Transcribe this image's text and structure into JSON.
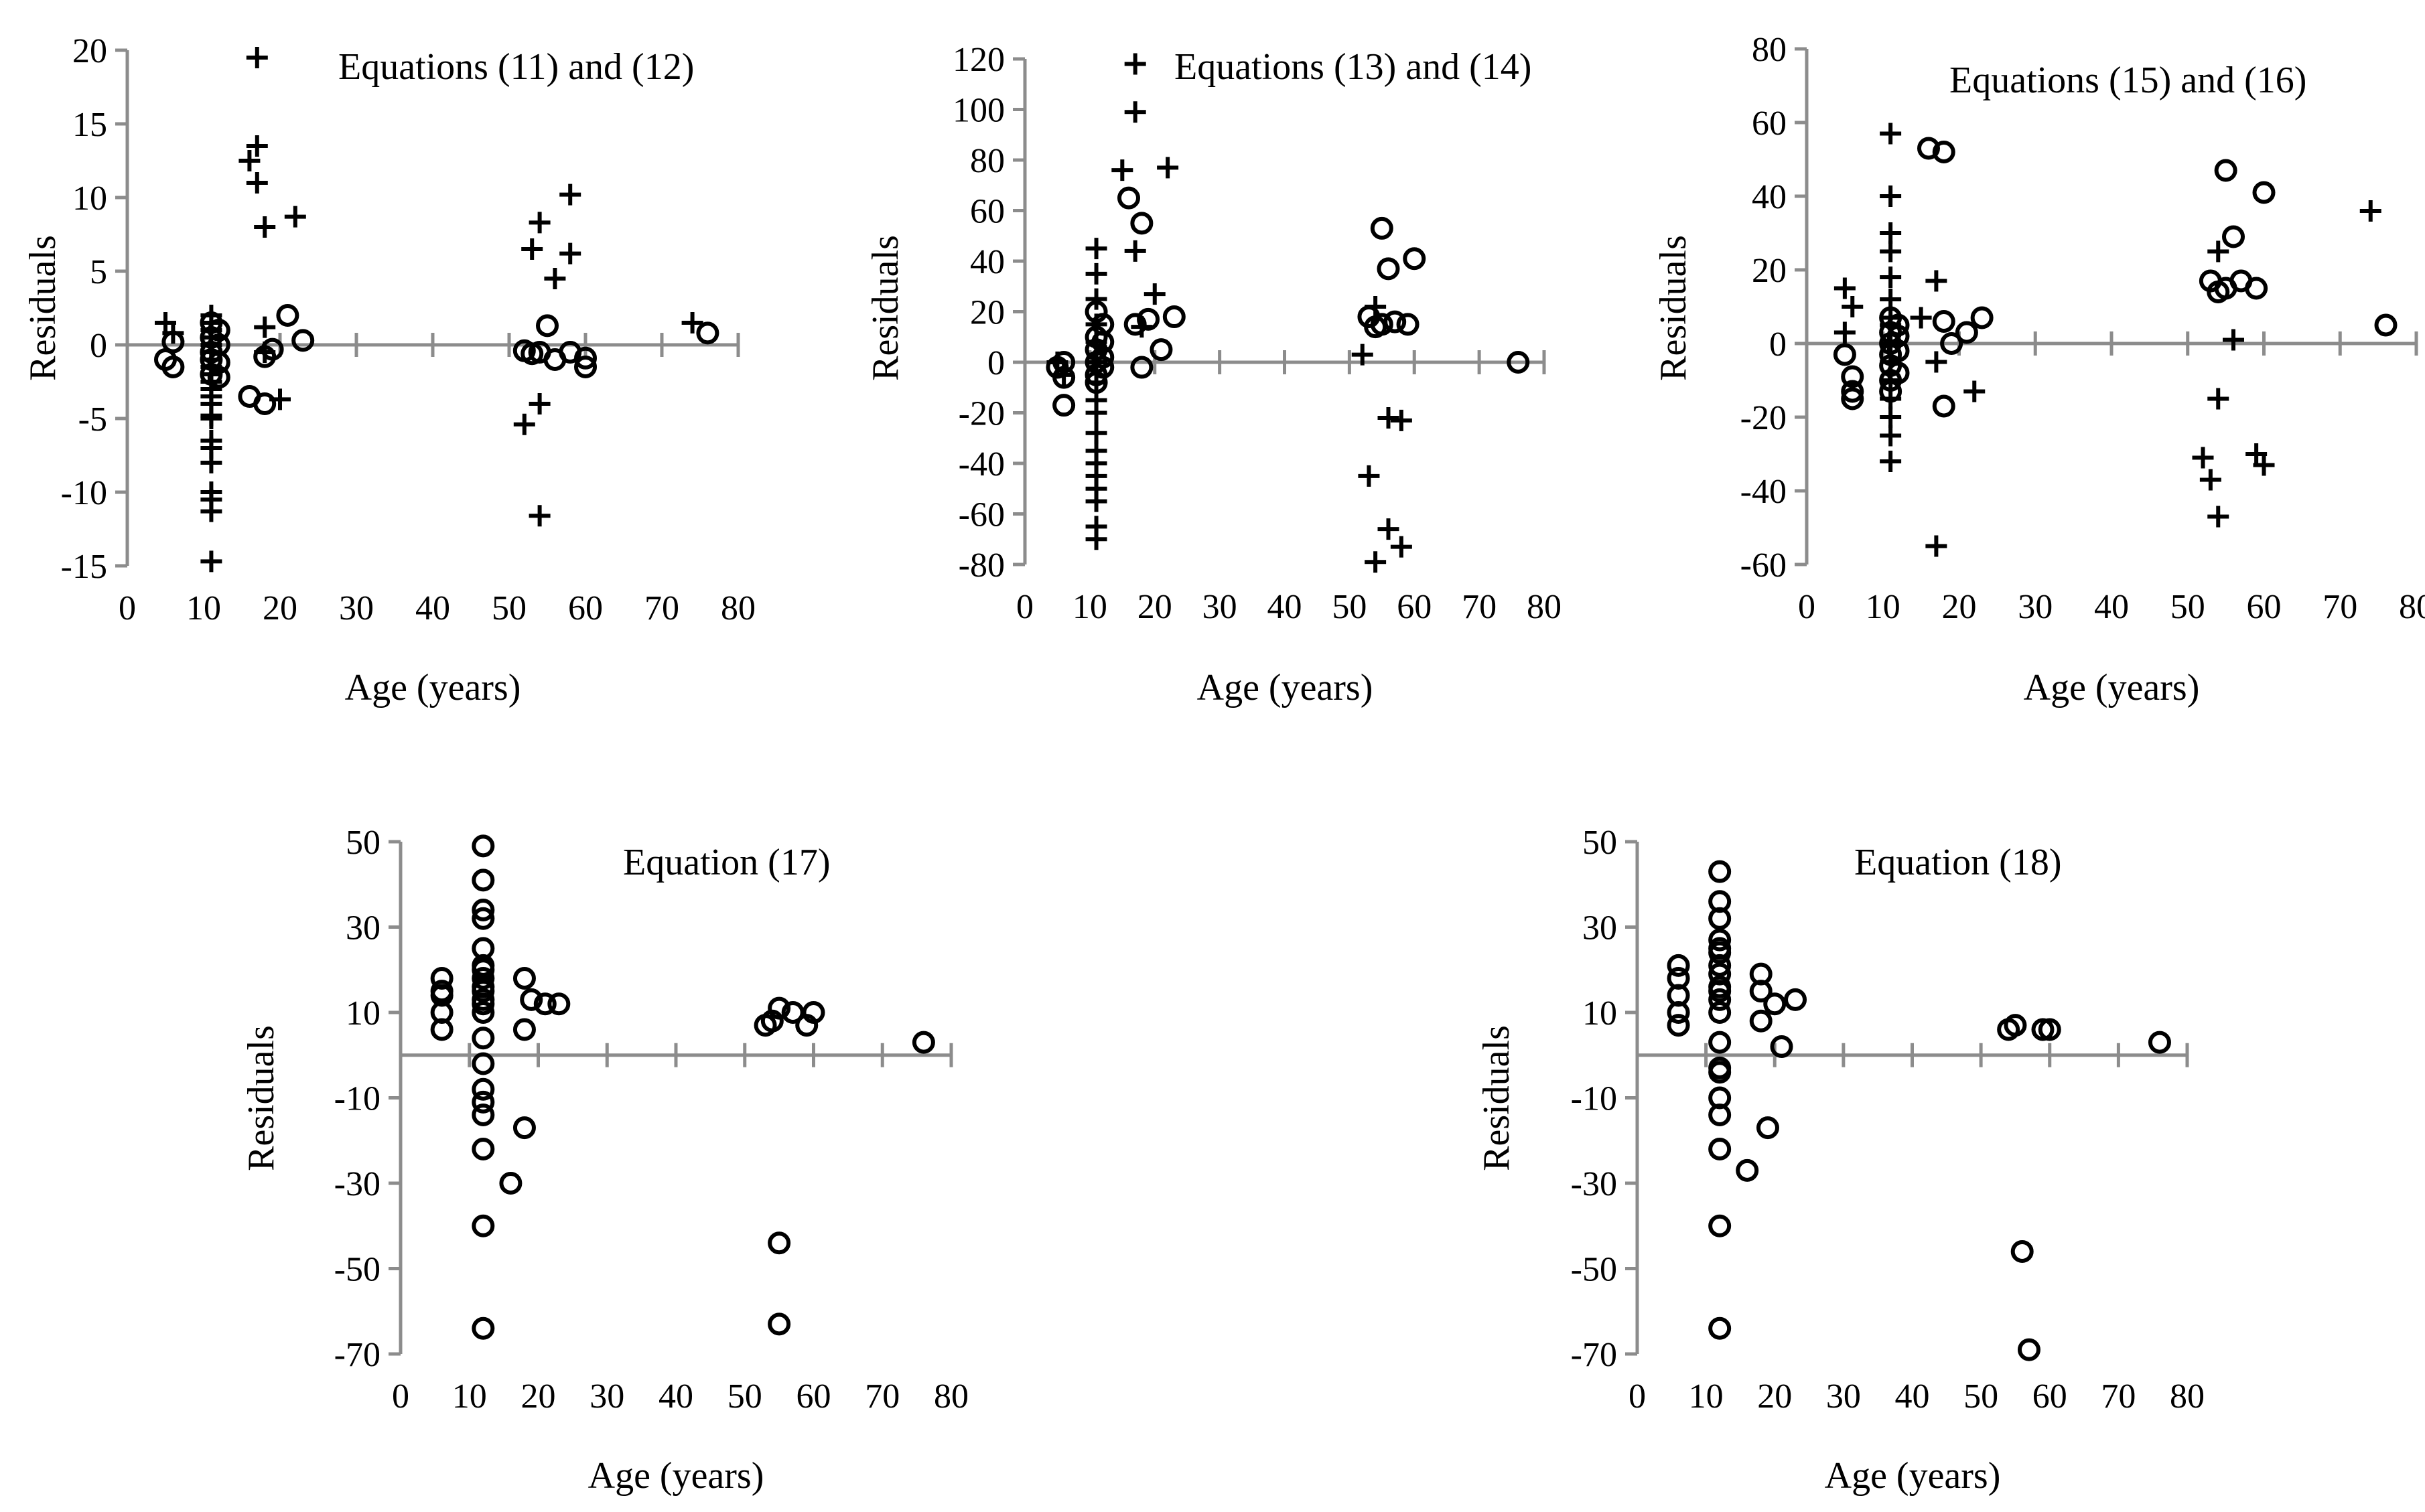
{
  "colors": {
    "axis": "#8c8c8c",
    "marker": "#000000",
    "background": "#ffffff"
  },
  "chart_data": [
    {
      "type": "scatter",
      "title": "Equations (11) and (12)",
      "xlabel": "Age (years)",
      "ylabel": "Residuals",
      "xlim": [
        0,
        80
      ],
      "ylim": [
        -15,
        20
      ],
      "xticks": [
        0,
        10,
        20,
        30,
        40,
        50,
        60,
        70,
        80
      ],
      "yticks": [
        -15,
        -10,
        -5,
        0,
        5,
        10,
        15,
        20
      ],
      "xtick_labels": [
        "0",
        "10",
        "20",
        "30",
        "40",
        "50",
        "60",
        "70",
        "80"
      ],
      "ytick_labels": [
        "-15",
        "-10",
        "-5",
        "0",
        "5",
        "10",
        "15",
        "20"
      ],
      "series": [
        {
          "name": "Equation (11)",
          "marker": "plus",
          "x": [
            5,
            6,
            11,
            11,
            11,
            11,
            11,
            11,
            11,
            11,
            11,
            11,
            11,
            11,
            11,
            11,
            11,
            11,
            11,
            11,
            11,
            11,
            11,
            11,
            11,
            16,
            17,
            17,
            17,
            18,
            18,
            18,
            20,
            22,
            52,
            53,
            54,
            54,
            54,
            56,
            58,
            58,
            74
          ],
          "y": [
            1.5,
            0.8,
            2,
            1.5,
            1,
            0.5,
            0,
            -0.5,
            -1,
            -1.5,
            -2,
            -3,
            -4,
            -5,
            -6.5,
            -7,
            -8,
            -10,
            -10.5,
            -11.3,
            -14.7,
            -1,
            -2.5,
            -3.5,
            -4.8,
            12.5,
            13.5,
            19.5,
            11,
            8,
            1.2,
            -0.5,
            -3.7,
            8.7,
            -5.4,
            6.5,
            8.3,
            -4,
            -11.6,
            4.5,
            10.2,
            6.2,
            1.5
          ]
        },
        {
          "name": "Equation (12)",
          "marker": "circle",
          "x": [
            5,
            6,
            6,
            11,
            11,
            11,
            11,
            11,
            12,
            12,
            12,
            12,
            16,
            18,
            18,
            19,
            21,
            23,
            52,
            53,
            54,
            55,
            56,
            58,
            60,
            60,
            76
          ],
          "y": [
            -1,
            -1.5,
            0.2,
            1.5,
            0.5,
            -0.5,
            -1,
            -2,
            1,
            0,
            -1.2,
            -2.2,
            -3.5,
            -4,
            -0.8,
            -0.3,
            2,
            0.3,
            -0.4,
            -0.6,
            -0.5,
            1.3,
            -1,
            -0.5,
            -0.9,
            -1.5,
            0.8
          ]
        }
      ]
    },
    {
      "type": "scatter",
      "title": "Equations (13) and (14)",
      "xlabel": "Age (years)",
      "ylabel": "Residuals",
      "xlim": [
        0,
        80
      ],
      "ylim": [
        -80,
        120
      ],
      "xticks": [
        0,
        10,
        20,
        30,
        40,
        50,
        60,
        70,
        80
      ],
      "yticks": [
        -80,
        -60,
        -40,
        -20,
        0,
        20,
        40,
        60,
        80,
        100,
        120
      ],
      "xtick_labels": [
        "0",
        "10",
        "20",
        "30",
        "40",
        "50",
        "60",
        "70",
        "80"
      ],
      "ytick_labels": [
        "-80",
        "-60",
        "-40",
        "-20",
        "0",
        "20",
        "40",
        "60",
        "80",
        "100",
        "120"
      ],
      "series": [
        {
          "name": "Equation (13)",
          "marker": "plus",
          "x": [
            5,
            6,
            11,
            11,
            11,
            11,
            11,
            11,
            11,
            11,
            11,
            11,
            11,
            11,
            11,
            11,
            11,
            11,
            11,
            15,
            17,
            17,
            17,
            18,
            20,
            22,
            52,
            53,
            54,
            54,
            56,
            56,
            58,
            58
          ],
          "y": [
            0,
            -5,
            45,
            35,
            25,
            15,
            8,
            0,
            -8,
            -15,
            -20,
            -28,
            -35,
            -40,
            -45,
            -50,
            -55,
            -65,
            -70,
            76,
            99,
            118,
            44,
            14,
            27,
            77,
            3,
            -45,
            -79,
            22,
            -66,
            -22,
            -73,
            -23
          ]
        },
        {
          "name": "Equation (14)",
          "marker": "circle",
          "x": [
            5,
            6,
            6,
            6,
            11,
            11,
            11,
            11,
            11,
            11,
            12,
            12,
            12,
            12,
            16,
            17,
            18,
            18,
            19,
            21,
            23,
            53,
            54,
            55,
            55,
            56,
            57,
            59,
            60,
            76
          ],
          "y": [
            -2,
            -17,
            0,
            -6,
            20,
            10,
            5,
            0,
            -5,
            -8,
            15,
            2,
            -2,
            8,
            65,
            15,
            55,
            -2,
            17,
            5,
            18,
            18,
            14,
            15,
            53,
            37,
            16,
            15,
            41,
            0
          ]
        }
      ]
    },
    {
      "type": "scatter",
      "title": "Equations (15) and (16)",
      "xlabel": "Age (years)",
      "ylabel": "Residuals",
      "xlim": [
        0,
        80
      ],
      "ylim": [
        -60,
        80
      ],
      "xticks": [
        0,
        10,
        20,
        30,
        40,
        50,
        60,
        70,
        80
      ],
      "yticks": [
        -60,
        -40,
        -20,
        0,
        20,
        40,
        60,
        80
      ],
      "xtick_labels": [
        "0",
        "10",
        "20",
        "30",
        "40",
        "50",
        "60",
        "70",
        "80"
      ],
      "ytick_labels": [
        "-60",
        "-40",
        "-20",
        "0",
        "20",
        "40",
        "60",
        "80"
      ],
      "series": [
        {
          "name": "Equation (15)",
          "marker": "plus",
          "x": [
            5,
            5,
            6,
            11,
            11,
            11,
            11,
            11,
            11,
            11,
            11,
            11,
            11,
            11,
            11,
            11,
            11,
            11,
            15,
            17,
            17,
            17,
            22,
            52,
            53,
            54,
            54,
            54,
            56,
            59,
            60,
            74
          ],
          "y": [
            15,
            3,
            10,
            57,
            40,
            30,
            25,
            18,
            12,
            5,
            0,
            -5,
            -10,
            -15,
            -20,
            -25,
            -32,
            7,
            7,
            17,
            -55,
            -5,
            -13,
            -31,
            -37,
            -47,
            -15,
            25,
            1,
            -30,
            -33,
            36
          ]
        },
        {
          "name": "Equation (16)",
          "marker": "circle",
          "x": [
            5,
            6,
            6,
            6,
            11,
            11,
            11,
            11,
            11,
            11,
            11,
            12,
            12,
            12,
            12,
            16,
            18,
            18,
            18,
            19,
            21,
            23,
            53,
            54,
            55,
            55,
            56,
            57,
            59,
            60,
            76
          ],
          "y": [
            -3,
            -15,
            -9,
            -13,
            7,
            3,
            0,
            -3,
            -6,
            -10,
            -13,
            5,
            -2,
            -8,
            2,
            53,
            52,
            -17,
            6,
            0,
            3,
            7,
            17,
            14,
            47,
            15,
            29,
            17,
            15,
            41,
            5
          ]
        }
      ]
    },
    {
      "type": "scatter",
      "title": "Equation (17)",
      "xlabel": "Age (years)",
      "ylabel": "Residuals",
      "xlim": [
        0,
        80
      ],
      "ylim": [
        -70,
        50
      ],
      "xticks": [
        0,
        10,
        20,
        30,
        40,
        50,
        60,
        70,
        80
      ],
      "yticks": [
        -70,
        -50,
        -30,
        -10,
        10,
        30,
        50
      ],
      "xtick_labels": [
        "0",
        "10",
        "20",
        "30",
        "40",
        "50",
        "60",
        "70",
        "80"
      ],
      "ytick_labels": [
        "-70",
        "-50",
        "-30",
        "-10",
        "10",
        "30",
        "50"
      ],
      "series": [
        {
          "name": "Equation (17)",
          "marker": "circle",
          "x": [
            6,
            6,
            6,
            6,
            6,
            12,
            12,
            12,
            12,
            12,
            12,
            12,
            12,
            12,
            12,
            12,
            12,
            12,
            12,
            12,
            12,
            12,
            12,
            12,
            12,
            12,
            16,
            18,
            18,
            18,
            19,
            21,
            23,
            53,
            54,
            55,
            55,
            55,
            57,
            59,
            60,
            76
          ],
          "y": [
            18,
            14,
            10,
            6,
            15,
            49,
            41,
            34,
            32,
            25,
            21,
            18,
            15,
            12,
            10,
            4,
            -2,
            -8,
            -11,
            -14,
            -22,
            -40,
            -64,
            16,
            20,
            13,
            -30,
            18,
            6,
            -17,
            13,
            12,
            12,
            7,
            8,
            11,
            -44,
            -63,
            10,
            7,
            10,
            3
          ]
        }
      ]
    },
    {
      "type": "scatter",
      "title": "Equation (18)",
      "xlabel": "Age (years)",
      "ylabel": "Residuals",
      "xlim": [
        0,
        80
      ],
      "ylim": [
        -70,
        50
      ],
      "xticks": [
        0,
        10,
        20,
        30,
        40,
        50,
        60,
        70,
        80
      ],
      "yticks": [
        -70,
        -50,
        -30,
        -10,
        10,
        30,
        50
      ],
      "xtick_labels": [
        "0",
        "10",
        "20",
        "30",
        "40",
        "50",
        "60",
        "70",
        "80"
      ],
      "ytick_labels": [
        "-70",
        "-50",
        "-30",
        "-10",
        "10",
        "30",
        "50"
      ],
      "series": [
        {
          "name": "Equation (18)",
          "marker": "circle",
          "x": [
            6,
            6,
            6,
            6,
            6,
            12,
            12,
            12,
            12,
            12,
            12,
            12,
            12,
            12,
            12,
            12,
            12,
            12,
            12,
            12,
            12,
            12,
            12,
            12,
            12,
            16,
            18,
            18,
            18,
            19,
            20,
            21,
            23,
            54,
            55,
            56,
            57,
            59,
            60,
            76
          ],
          "y": [
            21,
            18,
            14,
            10,
            7,
            43,
            36,
            32,
            27,
            24,
            21,
            19,
            16,
            13,
            10,
            3,
            -3,
            -4,
            -10,
            -14,
            -22,
            -40,
            -64,
            25,
            15,
            -27,
            19,
            15,
            8,
            -17,
            12,
            2,
            13,
            6,
            7,
            -46,
            -69,
            6,
            6,
            3
          ]
        }
      ]
    }
  ]
}
